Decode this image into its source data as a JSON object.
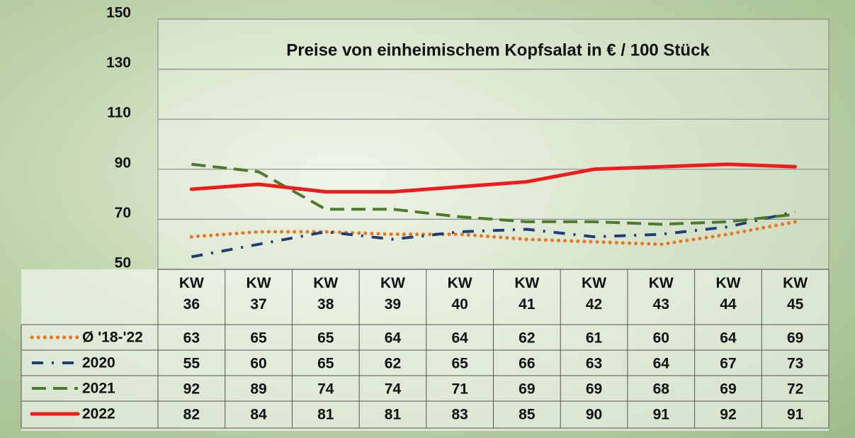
{
  "chart_data": {
    "type": "line",
    "title": "Preise von einheimischem Kopfsalat in € / 100 Stück",
    "categories": [
      "KW\n36",
      "KW\n37",
      "KW\n38",
      "KW\n39",
      "KW\n40",
      "KW\n41",
      "KW\n42",
      "KW\n43",
      "KW\n44",
      "KW\n45"
    ],
    "series": [
      {
        "name": "Ø '18-'22",
        "color": "#e87722",
        "dash": "dotted",
        "values": [
          63,
          65,
          65,
          64,
          64,
          62,
          61,
          60,
          64,
          69
        ]
      },
      {
        "name": "2020",
        "color": "#1f3f7a",
        "dash": "dashdot",
        "values": [
          55,
          60,
          65,
          62,
          65,
          66,
          63,
          64,
          67,
          73
        ]
      },
      {
        "name": "2021",
        "color": "#4e7a2e",
        "dash": "dashed",
        "values": [
          92,
          89,
          74,
          74,
          71,
          69,
          69,
          68,
          69,
          72
        ]
      },
      {
        "name": "2022",
        "color": "#ee1c1c",
        "dash": "solid",
        "values": [
          82,
          84,
          81,
          81,
          83,
          85,
          90,
          91,
          92,
          91
        ]
      }
    ],
    "ylim": [
      50,
      150
    ],
    "yticks": [
      50,
      70,
      90,
      110,
      130,
      150
    ],
    "grid": true
  }
}
